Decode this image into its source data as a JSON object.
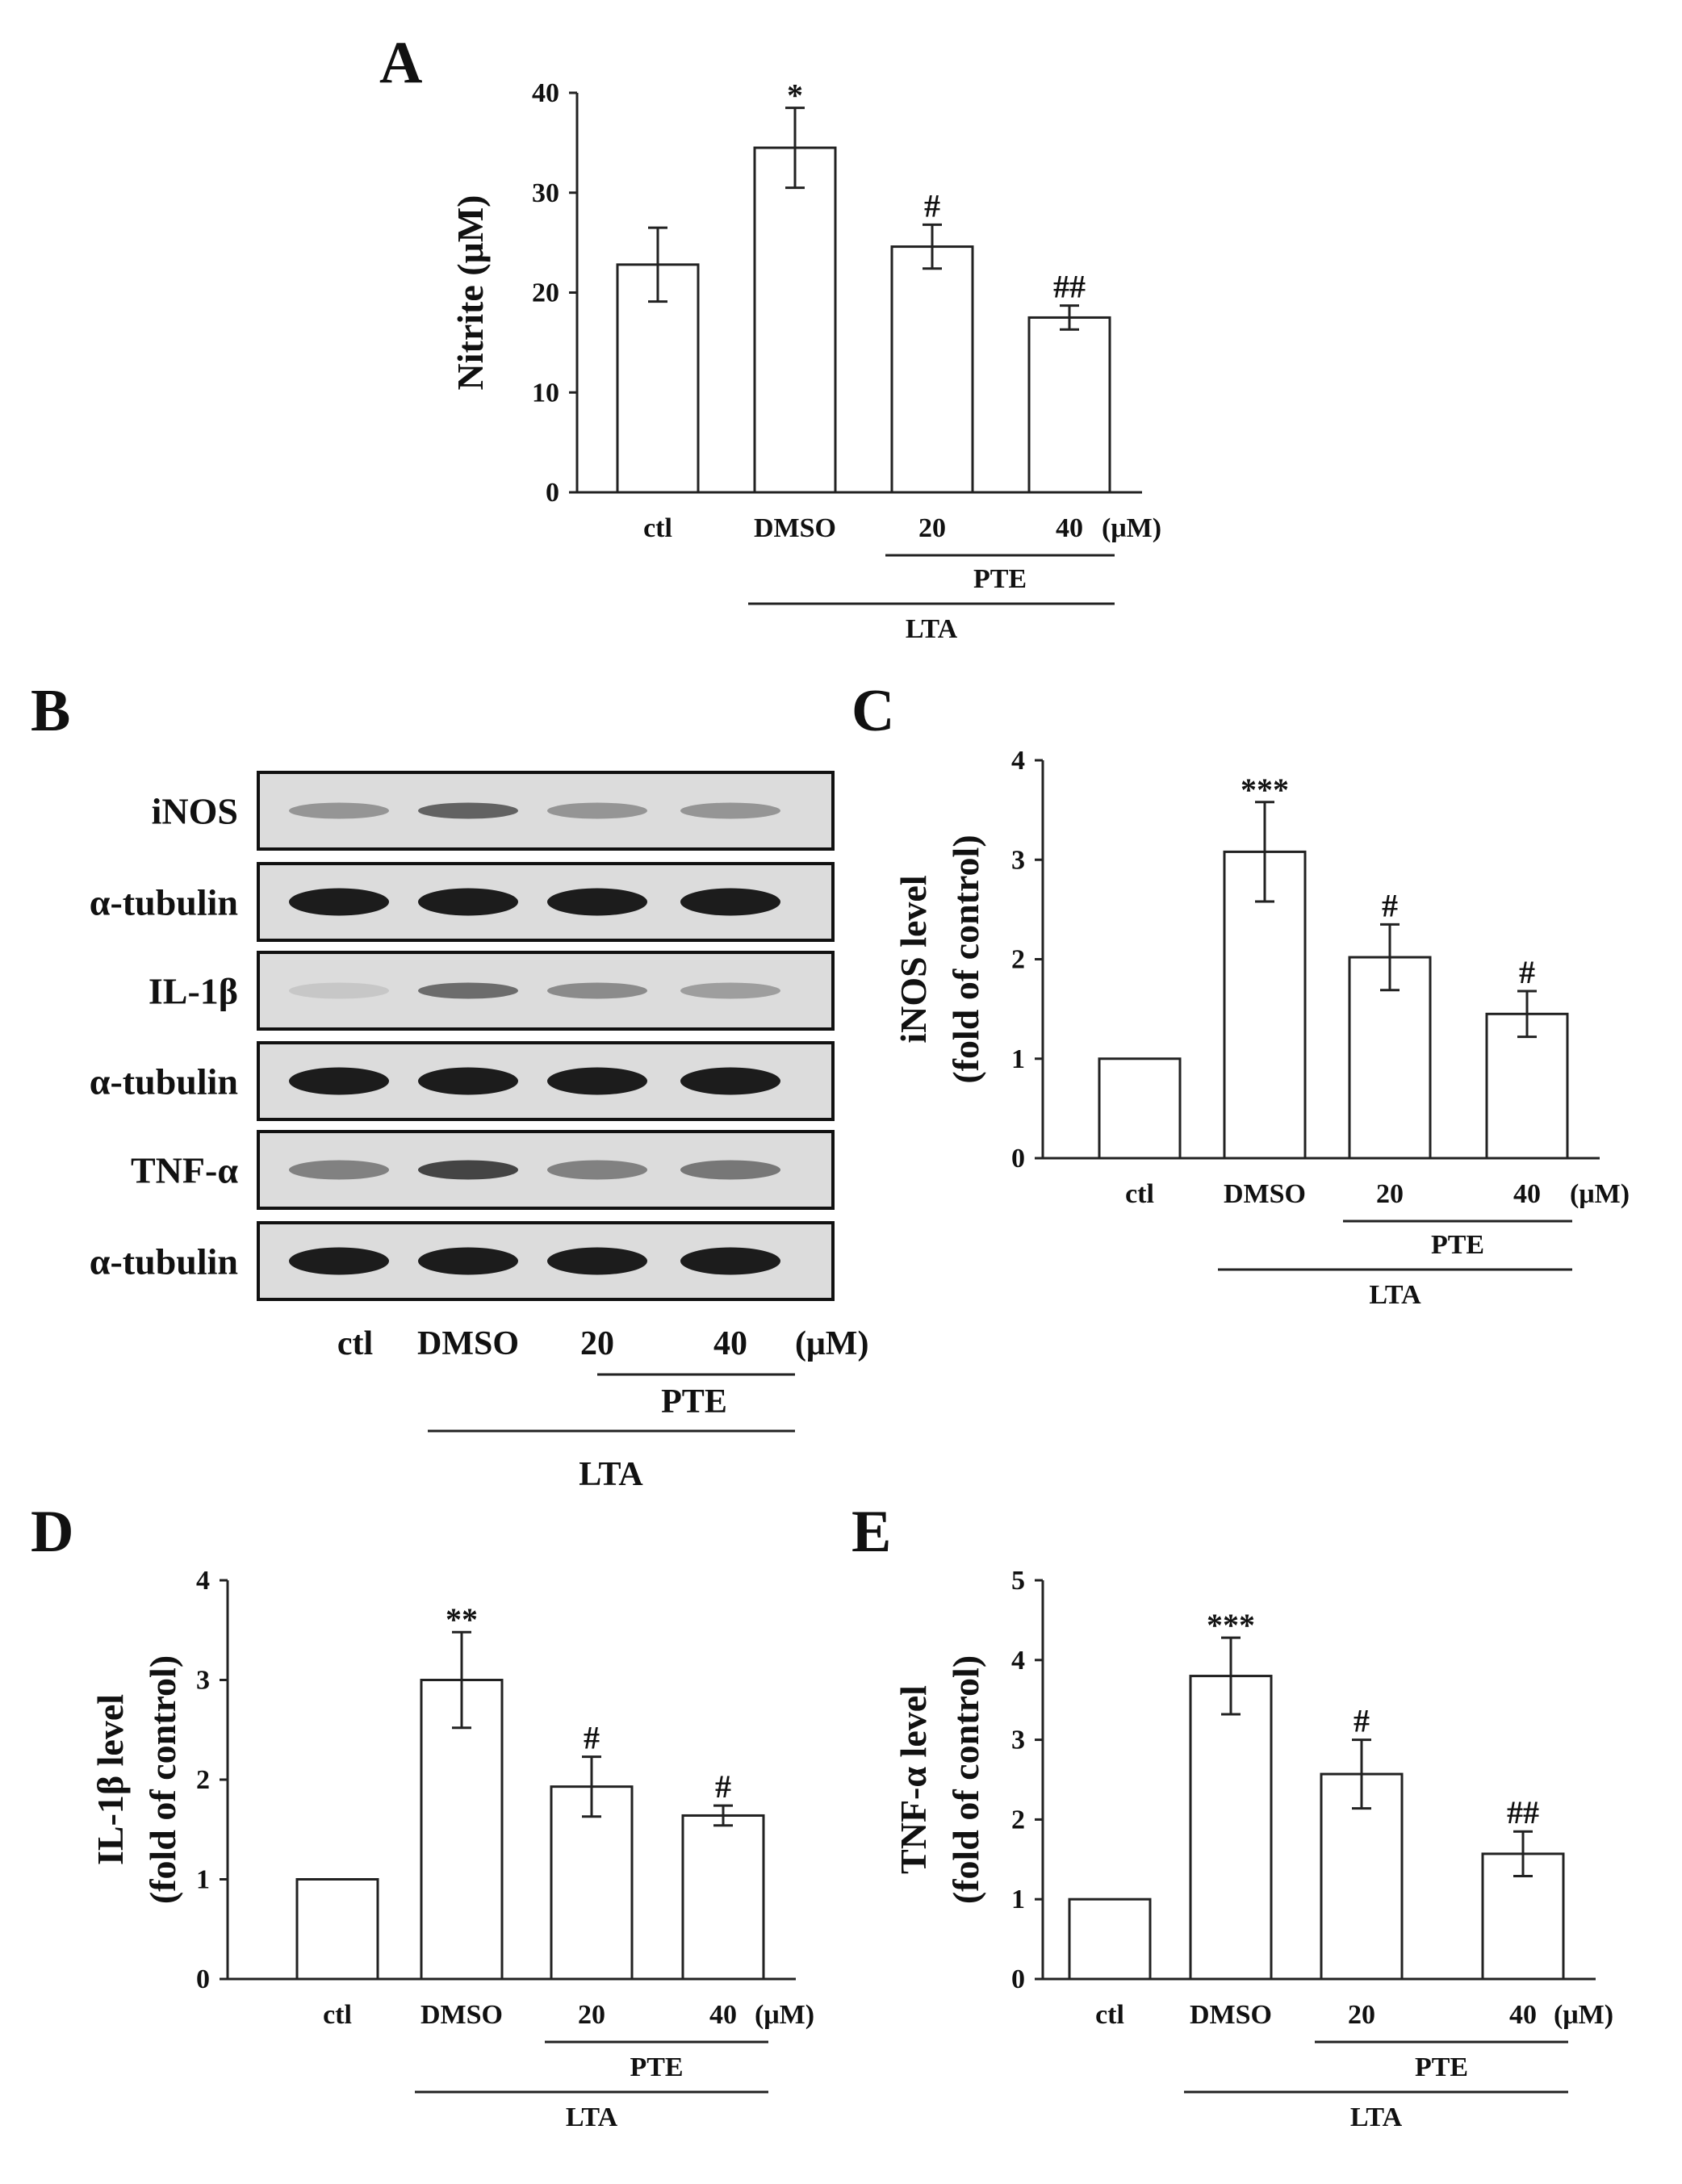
{
  "panel_letters": {
    "a": "A",
    "b": "B",
    "c": "C",
    "d": "D",
    "e": "E"
  },
  "groups": {
    "categories": [
      "ctl",
      "DMSO",
      "20",
      "40"
    ],
    "unit": "(μM)",
    "pte_label": "PTE",
    "lta_label": "LTA"
  },
  "blot": {
    "rows": [
      "iNOS",
      "α-tubulin",
      "IL-1β",
      "α-tubulin",
      "TNF-α",
      "α-tubulin"
    ],
    "lanes": [
      "ctl",
      "DMSO",
      "20",
      "40"
    ],
    "unit": "(μM)",
    "pte_label": "PTE",
    "lta_label": "LTA"
  },
  "chart_data": [
    {
      "panel": "A",
      "type": "bar",
      "categories": [
        "ctl",
        "DMSO",
        "20",
        "40"
      ],
      "values": [
        22.8,
        34.5,
        24.6,
        17.5
      ],
      "errors": [
        3.7,
        4.0,
        2.2,
        1.2
      ],
      "significance": [
        "",
        "*",
        "#",
        "##"
      ],
      "ylabel": "Nitrite (μM)",
      "ylim": [
        0,
        40
      ],
      "yticks": [
        0,
        10,
        20,
        30,
        40
      ]
    },
    {
      "panel": "C",
      "type": "bar",
      "categories": [
        "ctl",
        "DMSO",
        "20",
        "40"
      ],
      "values": [
        1.0,
        3.08,
        2.02,
        1.45
      ],
      "errors": [
        0,
        0.5,
        0.33,
        0.23
      ],
      "significance": [
        "",
        "***",
        "#",
        "#"
      ],
      "ylabel": [
        "iNOS level",
        "(fold of control)"
      ],
      "ylim": [
        0,
        4
      ],
      "yticks": [
        0,
        1,
        2,
        3,
        4
      ]
    },
    {
      "panel": "D",
      "type": "bar",
      "categories": [
        "ctl",
        "DMSO",
        "20",
        "40"
      ],
      "values": [
        1.0,
        3.0,
        1.93,
        1.64
      ],
      "errors": [
        0,
        0.48,
        0.3,
        0.1
      ],
      "significance": [
        "",
        "**",
        "#",
        "#"
      ],
      "ylabel": [
        "IL-1β level",
        "(fold of control)"
      ],
      "ylim": [
        0,
        4
      ],
      "yticks": [
        0,
        1,
        2,
        3,
        4
      ]
    },
    {
      "panel": "E",
      "type": "bar",
      "categories": [
        "ctl",
        "DMSO",
        "20",
        "40"
      ],
      "values": [
        1.0,
        3.8,
        2.57,
        1.57
      ],
      "errors": [
        0,
        0.48,
        0.43,
        0.28
      ],
      "significance": [
        "",
        "***",
        "#",
        "##"
      ],
      "ylabel": [
        "TNF-α level",
        "(fold of control)"
      ],
      "ylim": [
        0,
        5
      ],
      "yticks": [
        0,
        1,
        2,
        3,
        4,
        5
      ]
    }
  ]
}
